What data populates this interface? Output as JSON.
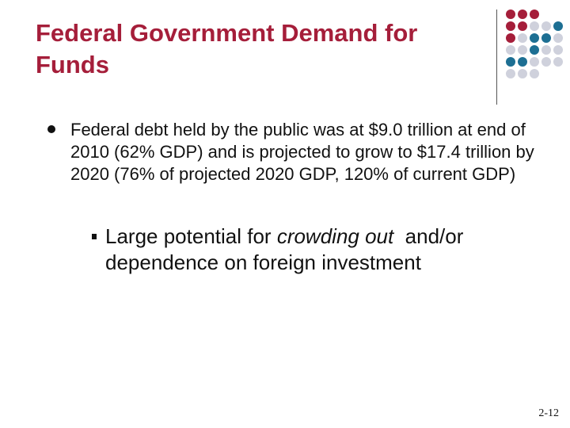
{
  "slide": {
    "title": "Federal Government Demand for Funds",
    "bullets": [
      {
        "text": "Federal debt held by the public was at $9.0 trillion at end of 2010 (62% GDP) and is projected to grow to $17.4 trillion by 2020 (76% of projected 2020 GDP, 120% of current GDP)",
        "sub_bullets": [
          {
            "text_before": "Large potential for ",
            "text_italic": "crowding out",
            "text_after": "  and/or dependence on foreign investment"
          }
        ]
      }
    ],
    "page_number": "2-12"
  },
  "decoration": {
    "dot_icon_name": "dot-grid-logo",
    "colors": {
      "title": "#a51e3a",
      "maroon": "#a51e3a",
      "teal": "#1d6f93",
      "gray": "#cfd1dc"
    },
    "dot_grid": [
      [
        "maroon",
        "maroon",
        "maroon",
        "empty",
        "empty"
      ],
      [
        "maroon",
        "maroon",
        "gray",
        "gray",
        "teal"
      ],
      [
        "maroon",
        "gray",
        "teal",
        "teal",
        "gray"
      ],
      [
        "gray",
        "gray",
        "teal",
        "gray",
        "gray"
      ],
      [
        "teal",
        "teal",
        "gray",
        "gray",
        "gray"
      ],
      [
        "gray",
        "gray",
        "gray",
        "empty",
        "empty"
      ]
    ]
  }
}
